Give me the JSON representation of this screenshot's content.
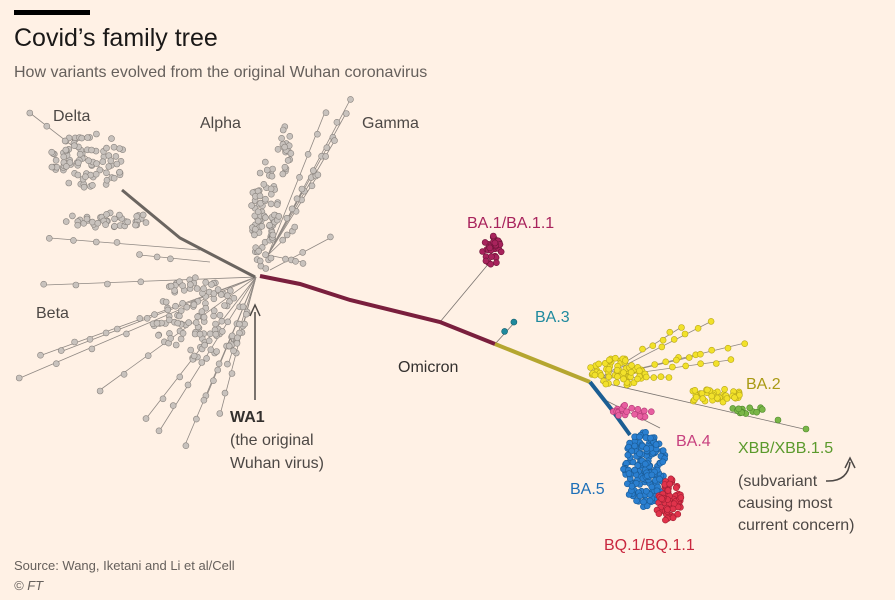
{
  "header": {
    "title": "Covid’s family tree",
    "subtitle": "How variants evolved from the original Wuhan coronavirus"
  },
  "labels": {
    "delta": "Delta",
    "alpha": "Alpha",
    "gamma": "Gamma",
    "beta": "Beta",
    "omicron": "Omicron",
    "ba1": "BA.1/BA.1.1",
    "ba3": "BA.3",
    "ba2": "BA.2",
    "ba4": "BA.4",
    "ba5": "BA.5",
    "bq1": "BQ.1/BQ.1.1",
    "xbb": "XBB/XBB.1.5",
    "wa1": "WA1",
    "wa1_note_line1": "(the original",
    "wa1_note_line2": "Wuhan virus)",
    "xbb_note_line1": "(subvariant",
    "xbb_note_line2": "causing most",
    "xbb_note_line3": "current concern)"
  },
  "colors": {
    "background": "#fff1e5",
    "pre_omicron": "#c8c2bd",
    "omicron_branch": "#7a1f3d",
    "ba1": "#a8235c",
    "ba3": "#1f8a9e",
    "ba2": "#f2e12a",
    "ba2_label": "#a99a14",
    "ba4": "#e85ea0",
    "ba5": "#2a7fd0",
    "bq1": "#e0334b",
    "xbb": "#7ab648"
  },
  "footer": {
    "source": "Source: Wang, Iketani and Li et al/Cell",
    "copyright": "© FT"
  }
}
